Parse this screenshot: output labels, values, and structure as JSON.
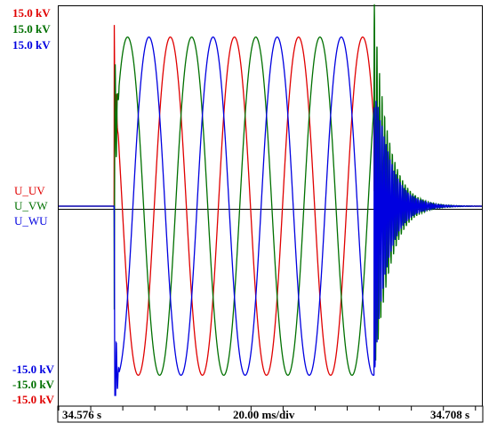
{
  "chart_data": {
    "type": "line",
    "title": "",
    "xlabel": "20.00 ms/div",
    "x_start_label": "34.576 s",
    "x_end_label": "34.708 s",
    "xlim": [
      34.576,
      34.708
    ],
    "ylim": [
      -15.0,
      15.0
    ],
    "y_unit": "kV",
    "grid": false,
    "legend_position": "left-middle",
    "scale_labels": {
      "top": [
        "15.0 kV",
        "15.0 kV",
        "15.0 kV"
      ],
      "bottom": [
        "-15.0 kV",
        "-15.0 kV",
        "-15.0 kV"
      ]
    },
    "event": {
      "energize_time_s": 34.5933,
      "deenergize_time_s": 34.6744,
      "frequency_hz": 50,
      "peak_kV": 13.0
    },
    "series": [
      {
        "name": "U_UV",
        "color": "#e00000",
        "phase_deg": 0
      },
      {
        "name": "U_VW",
        "color": "#007000",
        "phase_deg": -120
      },
      {
        "name": "U_WU",
        "color": "#0000e0",
        "phase_deg": 120
      }
    ]
  },
  "colors": {
    "axis": "#000000",
    "baseline": "#000000"
  }
}
